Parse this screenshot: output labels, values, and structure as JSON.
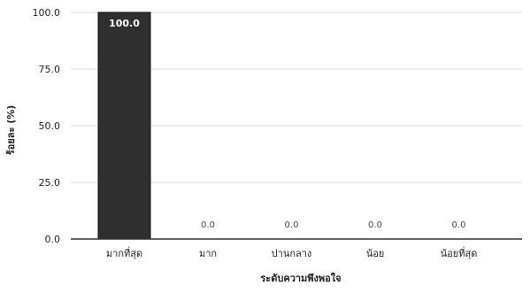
{
  "chart_data": {
    "type": "bar",
    "categories": [
      "มากที่สุด",
      "มาก",
      "ปานกลาง",
      "น้อย",
      "น้อยที่สุด"
    ],
    "values": [
      100.0,
      0.0,
      0.0,
      0.0,
      0.0
    ],
    "value_labels": [
      "100.0",
      "0.0",
      "0.0",
      "0.0",
      "0.0"
    ],
    "title": "",
    "xlabel": "ระดับความพึงพอใจ",
    "ylabel": "ร้อยละ (%)",
    "ylim": [
      0,
      100
    ],
    "yticks": [
      0,
      25,
      50,
      75,
      100
    ],
    "ytick_labels": [
      "0.0",
      "25.0",
      "50.0",
      "75.0",
      "100.0"
    ],
    "grid": true,
    "bar_color": "#2f2f2f",
    "grid_color": "#d9d9d9",
    "axis_color": "#333333"
  }
}
